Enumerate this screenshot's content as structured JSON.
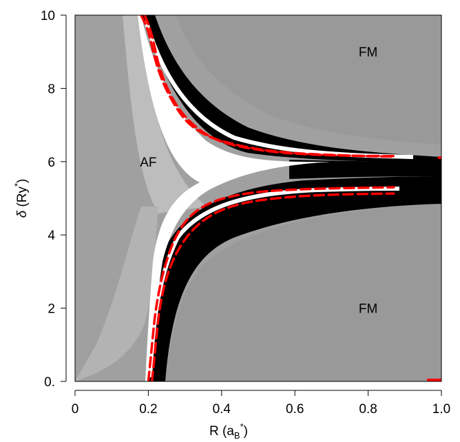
{
  "chart_data": {
    "type": "heatmap",
    "title": "",
    "xlabel": {
      "main": "R (a",
      "sub": "B",
      "sup": "*",
      "close": ")"
    },
    "ylabel": {
      "sym": "δ",
      "main": " (Ry",
      "sup": "*",
      "close": ")"
    },
    "xlim": [
      0,
      1.0
    ],
    "ylim": [
      0,
      10
    ],
    "x_ticks": [
      {
        "value": 0,
        "label": "0"
      },
      {
        "value": 0.2,
        "label": "0.2"
      },
      {
        "value": 0.4,
        "label": "0.4"
      },
      {
        "value": 0.6,
        "label": "0.6"
      },
      {
        "value": 0.8,
        "label": "0.8"
      },
      {
        "value": 1.0,
        "label": "1.0"
      }
    ],
    "y_ticks": [
      {
        "value": 0,
        "label": "0."
      },
      {
        "value": 2,
        "label": "2"
      },
      {
        "value": 4,
        "label": "4"
      },
      {
        "value": 6,
        "label": "6"
      },
      {
        "value": 8,
        "label": "8"
      },
      {
        "value": 10,
        "label": "10"
      }
    ],
    "region_labels": [
      {
        "text": "AF",
        "x": 0.2,
        "y": 6.0
      },
      {
        "text": "FM",
        "x": 0.8,
        "y": 9.0
      },
      {
        "text": "FM",
        "x": 0.8,
        "y": 2.0
      }
    ],
    "colors": {
      "background_gray": "#a0a0a0",
      "fm_gray": "#999999",
      "band_black": "#000000",
      "boundary_red": "#ff0000",
      "white": "#ffffff"
    },
    "boundary_curves": [
      {
        "name": "",
        "points": [
          [
            0.18,
            10.0
          ],
          [
            0.2,
            9.6
          ],
          [
            0.22,
            8.7
          ],
          [
            0.25,
            7.9
          ],
          [
            0.3,
            7.1
          ],
          [
            0.35,
            6.75
          ],
          [
            0.4,
            6.55
          ],
          [
            0.5,
            6.33
          ],
          [
            0.6,
            6.23
          ],
          [
            0.7,
            6.18
          ],
          [
            0.8,
            6.15
          ],
          [
            0.87,
            6.14
          ]
        ]
      },
      {
        "name": "",
        "points": [
          [
            0.19,
            10.0
          ],
          [
            0.21,
            9.5
          ],
          [
            0.23,
            8.5
          ],
          [
            0.27,
            7.6
          ],
          [
            0.32,
            7.0
          ],
          [
            0.38,
            6.6
          ],
          [
            0.45,
            6.4
          ],
          [
            0.55,
            6.25
          ],
          [
            0.65,
            6.19
          ],
          [
            0.75,
            6.16
          ],
          [
            0.87,
            6.15
          ]
        ]
      },
      {
        "name": "",
        "points": [
          [
            0.2,
            0.0
          ],
          [
            0.21,
            1.0
          ],
          [
            0.22,
            2.0
          ],
          [
            0.24,
            3.0
          ],
          [
            0.27,
            3.9
          ],
          [
            0.31,
            4.5
          ],
          [
            0.36,
            4.85
          ],
          [
            0.42,
            5.05
          ],
          [
            0.5,
            5.18
          ],
          [
            0.6,
            5.24
          ],
          [
            0.7,
            5.27
          ],
          [
            0.8,
            5.29
          ],
          [
            0.87,
            5.3
          ]
        ]
      },
      {
        "name": "",
        "points": [
          [
            0.21,
            0.0
          ],
          [
            0.22,
            1.0
          ],
          [
            0.23,
            2.0
          ],
          [
            0.25,
            2.9
          ],
          [
            0.28,
            3.6
          ],
          [
            0.32,
            4.15
          ],
          [
            0.37,
            4.55
          ],
          [
            0.43,
            4.8
          ],
          [
            0.5,
            4.95
          ],
          [
            0.6,
            5.05
          ],
          [
            0.7,
            5.1
          ],
          [
            0.8,
            5.12
          ],
          [
            0.87,
            5.13
          ]
        ]
      }
    ]
  }
}
